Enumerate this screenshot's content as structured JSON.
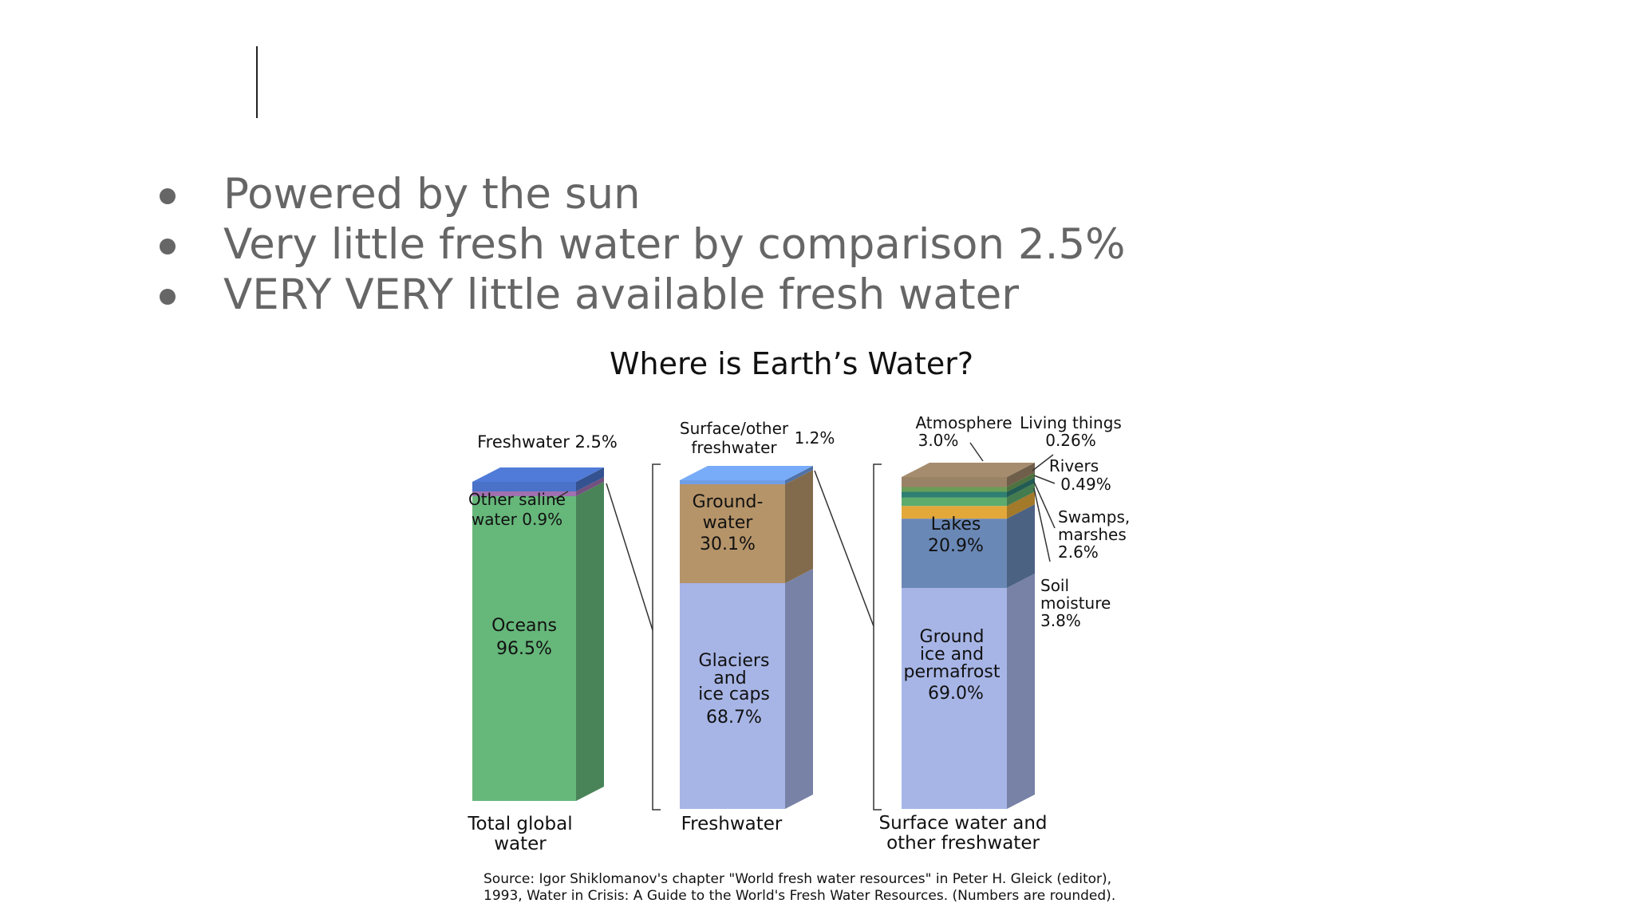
{
  "slide": {
    "bullets": [
      "Powered by the sun",
      "Very little fresh water by comparison 2.5%",
      "VERY VERY little available fresh water"
    ]
  },
  "chart_data": {
    "type": "bar",
    "title": "Where is Earth’s Water?",
    "bars": [
      {
        "category": "Total global water",
        "segments": [
          {
            "name": "Oceans",
            "value": 96.5,
            "label": "Oceans 96.5%",
            "color": "#66b77a"
          },
          {
            "name": "Other saline water",
            "value": 0.9,
            "label": "Other saline water 0.9%",
            "color": "#a070b0"
          },
          {
            "name": "Freshwater",
            "value": 2.5,
            "label": "Freshwater 2.5%",
            "color": "#4a72c8"
          }
        ]
      },
      {
        "category": "Freshwater",
        "segments": [
          {
            "name": "Glaciers and ice caps",
            "value": 68.7,
            "label": "Glaciers and ice caps 68.7%",
            "color": "#a7b5e6"
          },
          {
            "name": "Ground-water",
            "value": 30.1,
            "label": "Ground-water 30.1%",
            "color": "#b59469"
          },
          {
            "name": "Surface/other freshwater",
            "value": 1.2,
            "label": "Surface/other freshwater 1.2%",
            "color": "#6f9ee6"
          }
        ]
      },
      {
        "category": "Surface water and other freshwater",
        "segments": [
          {
            "name": "Ground ice and permafrost",
            "value": 69.0,
            "label": "Ground ice and permafrost 69.0%",
            "color": "#a7b5e6"
          },
          {
            "name": "Lakes",
            "value": 20.9,
            "label": "Lakes 20.9%",
            "color": "#6a88b6"
          },
          {
            "name": "Soil moisture",
            "value": 3.8,
            "label": "Soil moisture 3.8%",
            "color": "#e3a83a"
          },
          {
            "name": "Swamps, marshes",
            "value": 2.6,
            "label": "Swamps, marshes 2.6%",
            "color": "#5eab6e"
          },
          {
            "name": "Rivers",
            "value": 0.49,
            "label": "Rivers 0.49%",
            "color": "#2f7f73"
          },
          {
            "name": "Living things",
            "value": 0.26,
            "label": "Living things 0.26%",
            "color": "#6a9e58"
          },
          {
            "name": "Atmosphere",
            "value": 3.0,
            "label": "Atmosphere 3.0%",
            "color": "#9a8266"
          }
        ]
      }
    ],
    "source": [
      "Source: Igor Shiklomanov's chapter \"World fresh water resources\" in Peter H. Gleick (editor),",
      "1993, Water in Crisis: A Guide to the World's Fresh Water Resources. (Numbers are rounded)."
    ]
  },
  "labels": {
    "freshwater_pct": "Freshwater 2.5%",
    "other_saline_1": "Other saline",
    "other_saline_2": "water 0.9%",
    "oceans_1": "Oceans",
    "oceans_2": "96.5%",
    "total_1": "Total global",
    "total_2": "water",
    "surface_other_1": "Surface/other",
    "surface_other_2": "freshwater",
    "surface_other_pct": "1.2%",
    "groundwater_1": "Ground-",
    "groundwater_2": "water",
    "groundwater_3": "30.1%",
    "glaciers_1": "Glaciers",
    "glaciers_2": "and",
    "glaciers_3": "ice caps",
    "glaciers_4": "68.7%",
    "freshwater_cat": "Freshwater",
    "atmosphere_1": "Atmosphere",
    "atmosphere_2": "3.0%",
    "living_1": "Living things",
    "living_2": "0.26%",
    "rivers_1": "Rivers",
    "rivers_2": "0.49%",
    "swamps_1": "Swamps,",
    "swamps_2": "marshes",
    "swamps_3": "2.6%",
    "soil_1": "Soil",
    "soil_2": "moisture",
    "soil_3": "3.8%",
    "lakes_1": "Lakes",
    "lakes_2": "20.9%",
    "groundice_1": "Ground",
    "groundice_2": "ice and",
    "groundice_3": "permafrost",
    "groundice_4": "69.0%",
    "surface_cat_1": "Surface water and",
    "surface_cat_2": "other freshwater"
  }
}
